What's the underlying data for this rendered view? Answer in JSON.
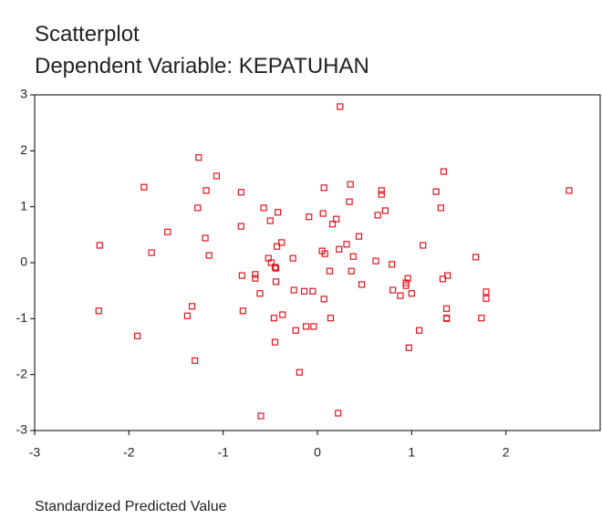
{
  "chart_data": {
    "type": "scatter",
    "title": "Scatterplot",
    "subtitle": "Dependent Variable: KEPATUHAN",
    "xlabel": "Standardized Predicted Value",
    "xlim": [
      -3,
      3
    ],
    "ylim": [
      -3,
      3
    ],
    "xticks": [
      -3,
      -2,
      -1,
      0,
      1,
      2
    ],
    "yticks": [
      -3,
      -2,
      -1,
      0,
      1,
      2,
      3
    ],
    "color": "#e0141e",
    "x": [
      0.24,
      -1.26,
      1.34,
      -1.07,
      -1.84,
      0.35,
      0.07,
      -1.18,
      0.68,
      0.68,
      1.26,
      2.67,
      -0.81,
      0.34,
      -0.57,
      -1.27,
      1.31,
      0.72,
      -0.42,
      0.06,
      0.64,
      -0.09,
      -0.5,
      0.2,
      0.16,
      -0.81,
      -1.59,
      -1.19,
      0.44,
      -0.38,
      0.31,
      -0.43,
      -2.31,
      1.12,
      0.05,
      0.23,
      0.08,
      -1.76,
      -1.15,
      0.38,
      1.68,
      -0.52,
      -0.26,
      -0.49,
      0.62,
      -0.45,
      0.79,
      -0.44,
      0.13,
      0.36,
      -0.8,
      -0.66,
      -0.66,
      1.38,
      0.96,
      1.33,
      -0.44,
      0.47,
      0.94,
      0.94,
      0.8,
      1.79,
      -0.25,
      -0.14,
      -0.05,
      -0.61,
      0.88,
      1.0,
      1.79,
      0.07,
      -1.33,
      1.37,
      -2.32,
      -0.79,
      -1.38,
      -0.37,
      -0.46,
      0.14,
      1.37,
      1.37,
      1.74,
      -0.12,
      -0.04,
      -0.23,
      1.08,
      -1.91,
      -0.45,
      0.97,
      -1.3,
      -0.19,
      0.22,
      -0.6
    ],
    "y": [
      2.79,
      1.88,
      1.63,
      1.55,
      1.35,
      1.4,
      1.34,
      1.29,
      1.29,
      1.22,
      1.27,
      1.29,
      1.26,
      1.09,
      0.98,
      0.98,
      0.98,
      0.93,
      0.9,
      0.88,
      0.85,
      0.82,
      0.75,
      0.78,
      0.69,
      0.65,
      0.55,
      0.44,
      0.47,
      0.36,
      0.33,
      0.29,
      0.31,
      0.31,
      0.21,
      0.24,
      0.16,
      0.18,
      0.13,
      0.11,
      0.1,
      0.08,
      0.08,
      0.0,
      0.03,
      -0.08,
      -0.03,
      -0.1,
      -0.15,
      -0.15,
      -0.23,
      -0.21,
      -0.28,
      -0.23,
      -0.28,
      -0.29,
      -0.34,
      -0.39,
      -0.36,
      -0.41,
      -0.49,
      -0.52,
      -0.49,
      -0.51,
      -0.51,
      -0.55,
      -0.59,
      -0.55,
      -0.64,
      -0.65,
      -0.78,
      -0.82,
      -0.86,
      -0.86,
      -0.95,
      -0.93,
      -0.99,
      -0.99,
      -0.99,
      -1.0,
      -0.99,
      -1.14,
      -1.14,
      -1.21,
      -1.21,
      -1.31,
      -1.42,
      -1.52,
      -1.75,
      -1.96,
      -2.69,
      -2.74
    ]
  }
}
